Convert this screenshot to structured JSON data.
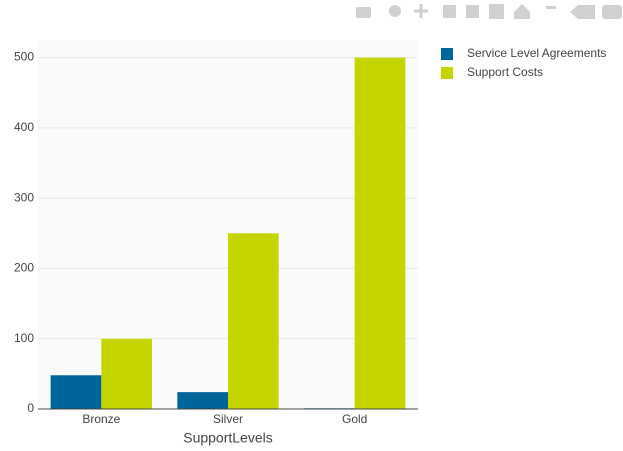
{
  "chart_data": {
    "type": "bar",
    "x_label": "SupportLevels",
    "categories": [
      "Bronze",
      "Silver",
      "Gold"
    ],
    "series": [
      {
        "name": "Service Level Agreements",
        "color": "#006699",
        "values": [
          48,
          24,
          1
        ]
      },
      {
        "name": "Support Costs",
        "color": "#c5d500",
        "values": [
          100,
          250,
          500
        ]
      }
    ],
    "ylim": [
      0,
      525
    ],
    "yticks": [
      0,
      100,
      200,
      300,
      400,
      500
    ],
    "grid": true,
    "legend": "top-right"
  }
}
